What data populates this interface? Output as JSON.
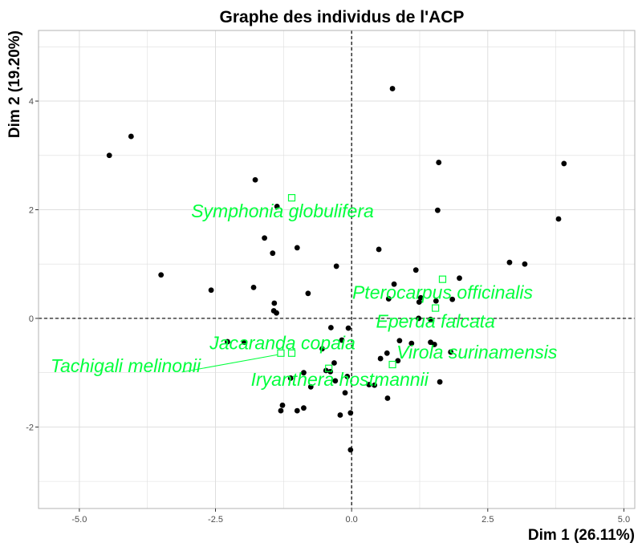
{
  "chart_data": {
    "type": "scatter",
    "title": "Graphe des individus de l'ACP",
    "xlabel": "Dim 1 (26.11%)",
    "ylabel": "Dim 2 (19.20%)",
    "xlim": [
      -5.75,
      5.2
    ],
    "ylim": [
      -3.5,
      5.3
    ],
    "xticks": [
      -5,
      -2.5,
      0,
      2.5,
      5
    ],
    "xtick_labels": [
      "-5.0",
      "-2.5",
      "0.0",
      "2.5",
      "5.0"
    ],
    "yticks": [
      -2,
      0,
      2,
      4
    ],
    "ytick_labels": [
      "-2",
      "0",
      "2",
      "4"
    ],
    "grid": true,
    "reference_lines": {
      "x": 0,
      "y": 0,
      "style": "dashed"
    },
    "colors": {
      "individuals": "#000000",
      "supplementary": "#00ff3c",
      "grid": "#dedede",
      "panel_border": "#b3b3b3"
    },
    "individuals": [
      {
        "x": 0.75,
        "y": 4.23
      },
      {
        "x": -4.05,
        "y": 3.35
      },
      {
        "x": -4.45,
        "y": 3.0
      },
      {
        "x": 1.6,
        "y": 2.87
      },
      {
        "x": 3.9,
        "y": 2.85
      },
      {
        "x": -1.77,
        "y": 2.55
      },
      {
        "x": -1.37,
        "y": 2.06
      },
      {
        "x": 1.58,
        "y": 1.99
      },
      {
        "x": 3.8,
        "y": 1.83
      },
      {
        "x": -1.6,
        "y": 1.48
      },
      {
        "x": -1.0,
        "y": 1.3
      },
      {
        "x": -1.45,
        "y": 1.2
      },
      {
        "x": 0.5,
        "y": 1.27
      },
      {
        "x": 2.9,
        "y": 1.03
      },
      {
        "x": 3.18,
        "y": 1.0
      },
      {
        "x": -0.28,
        "y": 0.96
      },
      {
        "x": 1.18,
        "y": 0.89
      },
      {
        "x": -3.5,
        "y": 0.8
      },
      {
        "x": 1.98,
        "y": 0.74
      },
      {
        "x": -1.8,
        "y": 0.57
      },
      {
        "x": 0.78,
        "y": 0.63
      },
      {
        "x": -2.58,
        "y": 0.52
      },
      {
        "x": -0.8,
        "y": 0.46
      },
      {
        "x": 0.68,
        "y": 0.36
      },
      {
        "x": 1.27,
        "y": 0.38
      },
      {
        "x": 1.55,
        "y": 0.32
      },
      {
        "x": 1.85,
        "y": 0.35
      },
      {
        "x": -1.42,
        "y": 0.28
      },
      {
        "x": 1.24,
        "y": 0.3
      },
      {
        "x": -1.43,
        "y": 0.14
      },
      {
        "x": -1.38,
        "y": 0.1
      },
      {
        "x": 1.23,
        "y": 0.0
      },
      {
        "x": 1.45,
        "y": -0.02
      },
      {
        "x": -0.38,
        "y": -0.17
      },
      {
        "x": -0.06,
        "y": -0.18
      },
      {
        "x": -2.28,
        "y": -0.43
      },
      {
        "x": -0.18,
        "y": -0.4
      },
      {
        "x": 0.88,
        "y": -0.41
      },
      {
        "x": 1.1,
        "y": -0.46
      },
      {
        "x": 1.45,
        "y": -0.44
      },
      {
        "x": 1.52,
        "y": -0.48
      },
      {
        "x": -1.97,
        "y": -0.44
      },
      {
        "x": -0.54,
        "y": -0.56
      },
      {
        "x": 0.65,
        "y": -0.64
      },
      {
        "x": 1.82,
        "y": -0.62
      },
      {
        "x": -0.32,
        "y": -0.82
      },
      {
        "x": 0.53,
        "y": -0.74
      },
      {
        "x": 0.85,
        "y": -0.78
      },
      {
        "x": -0.39,
        "y": -0.98
      },
      {
        "x": -0.88,
        "y": -1.0
      },
      {
        "x": -0.08,
        "y": -1.07
      },
      {
        "x": -0.47,
        "y": -0.96
      },
      {
        "x": -1.12,
        "y": -1.1
      },
      {
        "x": -0.3,
        "y": -1.15
      },
      {
        "x": 0.32,
        "y": -1.22
      },
      {
        "x": 0.42,
        "y": -1.23
      },
      {
        "x": -0.75,
        "y": -1.26
      },
      {
        "x": 1.62,
        "y": -1.17
      },
      {
        "x": -0.12,
        "y": -1.37
      },
      {
        "x": 0.66,
        "y": -1.47
      },
      {
        "x": -1.27,
        "y": -1.6
      },
      {
        "x": -0.88,
        "y": -1.65
      },
      {
        "x": -1.3,
        "y": -1.7
      },
      {
        "x": -1.0,
        "y": -1.7
      },
      {
        "x": -0.21,
        "y": -1.78
      },
      {
        "x": -0.02,
        "y": -1.74
      },
      {
        "x": -0.02,
        "y": -2.42
      }
    ],
    "supplementary": [
      {
        "name": "Symphonia globulifera",
        "x": -1.1,
        "y": 2.22,
        "lx": -1.27,
        "ly": 1.95,
        "leader": false
      },
      {
        "name": "Pterocarpus officinalis",
        "x": 1.67,
        "y": 0.72,
        "lx": 1.67,
        "ly": 0.45,
        "leader": false
      },
      {
        "name": "Eperua falcata",
        "x": 1.54,
        "y": 0.19,
        "lx": 1.54,
        "ly": -0.08,
        "leader": false
      },
      {
        "name": "Jacaranda copaia",
        "x": -1.1,
        "y": -0.64,
        "lx": -1.27,
        "ly": -0.48,
        "leader": false
      },
      {
        "name": "Virola surinamensis",
        "x": 0.75,
        "y": -0.85,
        "lx": 2.3,
        "ly": -0.65,
        "leader": false
      },
      {
        "name": "Iryanthera hostmannii",
        "x": -0.42,
        "y": -0.92,
        "lx": -0.22,
        "ly": -1.15,
        "leader": false
      },
      {
        "name": "Tachigali melinonii",
        "x": -1.3,
        "y": -0.64,
        "lx": -4.15,
        "ly": -0.9,
        "leader": true
      }
    ]
  }
}
